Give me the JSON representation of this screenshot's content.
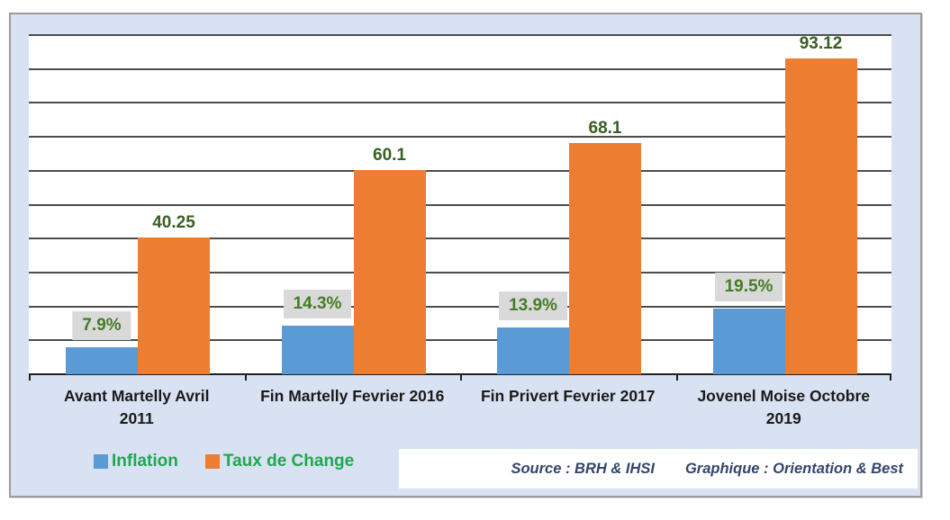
{
  "chart_data": {
    "type": "bar",
    "title": "",
    "xlabel": "",
    "ylabel": "",
    "categories": [
      "Avant Martelly Avril\n2011",
      "Fin Martelly Fevrier 2016",
      "Fin Privert Fevrier 2017",
      "Jovenel Moise Octobre\n2019"
    ],
    "series": [
      {
        "name": "Inflation",
        "values": [
          7.9,
          14.3,
          13.9,
          19.5
        ],
        "labels": [
          "7.9%",
          "14.3%",
          "13.9%",
          "19.5%"
        ],
        "color": "#5B9BD5",
        "label_boxed": true
      },
      {
        "name": "Taux de Change",
        "values": [
          40.25,
          60.1,
          68.1,
          93.12
        ],
        "labels": [
          "40.25",
          "60.1",
          "68.1",
          "93.12"
        ],
        "color": "#ED7D31",
        "label_boxed": false
      }
    ],
    "ylim": [
      0,
      100
    ],
    "gridline_step": 10,
    "grid": true,
    "y_axis_labels_visible": false,
    "legend_position": "bottom-left"
  },
  "source_note": {
    "source": "Source : BRH & IHSI",
    "graphique": "Graphique : Orientation & Best"
  },
  "colors": {
    "frame_background": "#D9E2F3",
    "frame_border": "#9B9B9B",
    "plot_background": "#FFFFFF",
    "gridline": "#4D4D4D",
    "axis_line": "#1F1F1F",
    "category_label_text": "#1A1A1A",
    "orange_value_label_text": "#386024",
    "pct_label_text": "#447D24",
    "pct_label_box": "#D9D9D9",
    "legend_text": "#1FA84F",
    "source_text": "#33456B",
    "inflation_blue": "#5B9BD5",
    "taux_de_change_orange": "#ED7D31"
  }
}
